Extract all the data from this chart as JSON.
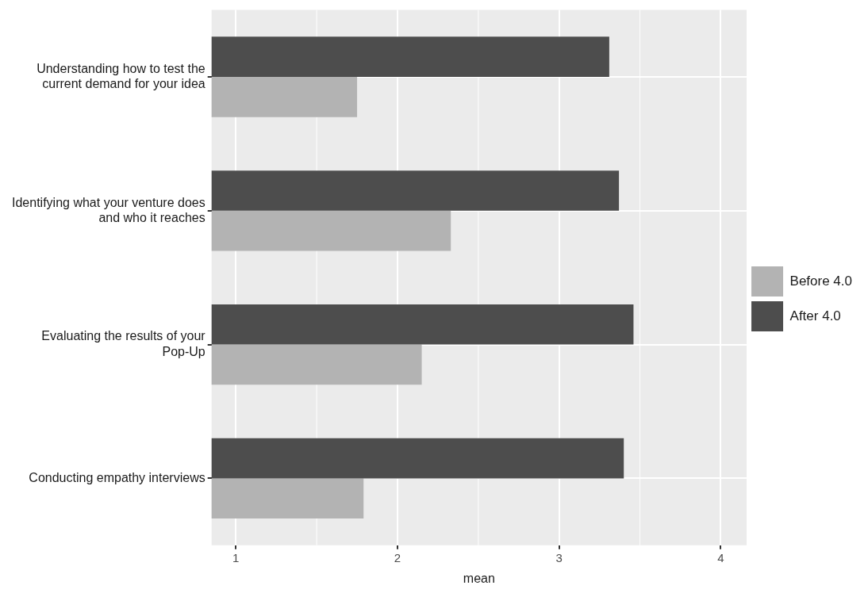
{
  "chart_data": {
    "type": "bar",
    "orientation": "horizontal",
    "xlabel": "mean",
    "categories": [
      "Understanding how to test the\ncurrent demand for your idea",
      "Identifying what your venture does\nand who it reaches",
      "Evaluating the results of your\nPop-Up",
      "Conducting empathy interviews"
    ],
    "series": [
      {
        "name": "Before 4.0",
        "color": "#b3b3b3",
        "values": [
          1.75,
          2.33,
          2.15,
          1.79
        ]
      },
      {
        "name": "After 4.0",
        "color": "#4d4d4d",
        "values": [
          3.31,
          3.37,
          3.46,
          3.4
        ]
      }
    ],
    "xlim": [
      0.85,
      4.16
    ],
    "xticks": [
      1,
      2,
      3,
      4
    ],
    "grid": true,
    "legend": "right"
  }
}
